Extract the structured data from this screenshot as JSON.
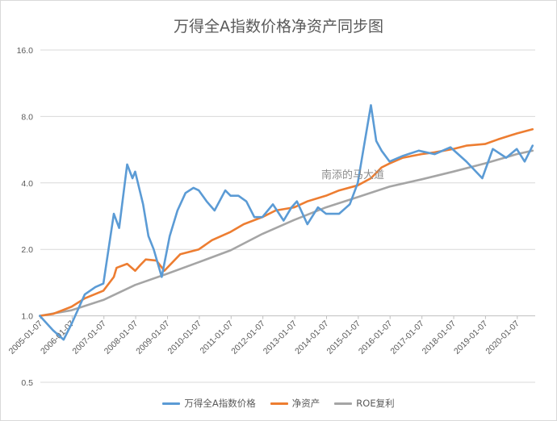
{
  "chart_data": {
    "type": "line",
    "title": "万得全A指数价格净资产同步图",
    "y_scale": "log",
    "ylim": [
      0.5,
      16.0
    ],
    "y_ticks": [
      "16.0",
      "8.0",
      "4.0",
      "2.0",
      "1.0",
      "0.5"
    ],
    "y_tick_values": [
      16,
      8,
      4,
      2,
      1,
      0.5
    ],
    "x_ticks": [
      "2005-01-07",
      "2006-01-07",
      "2007-01-07",
      "2008-01-07",
      "2009-01-07",
      "2010-01-07",
      "2011-01-07",
      "2012-01-07",
      "2013-01-07",
      "2014-01-07",
      "2015-01-07",
      "2016-01-07",
      "2017-01-07",
      "2018-01-07",
      "2019-01-07",
      "2020-01-07"
    ],
    "xlim": [
      "2005-01-07",
      "2020-07-31"
    ],
    "grid": true,
    "legend_position": "bottom",
    "watermark": "南添的马大道",
    "series": [
      {
        "name": "万得全A指数价格",
        "color": "#5b9bd5",
        "x": [
          "2005-01",
          "2005-06",
          "2005-10",
          "2006-01",
          "2006-06",
          "2006-10",
          "2007-01",
          "2007-05",
          "2007-07",
          "2007-10",
          "2007-12",
          "2008-01",
          "2008-04",
          "2008-06",
          "2008-08",
          "2008-11",
          "2009-02",
          "2009-05",
          "2009-08",
          "2009-11",
          "2010-01",
          "2010-04",
          "2010-07",
          "2010-11",
          "2011-01",
          "2011-04",
          "2011-07",
          "2011-10",
          "2012-01",
          "2012-05",
          "2012-09",
          "2012-12",
          "2013-02",
          "2013-06",
          "2013-10",
          "2014-01",
          "2014-06",
          "2014-10",
          "2015-01",
          "2015-03",
          "2015-06",
          "2015-08",
          "2015-10",
          "2016-01",
          "2016-06",
          "2016-12",
          "2017-06",
          "2017-12",
          "2018-06",
          "2018-12",
          "2019-04",
          "2019-09",
          "2020-01",
          "2020-04",
          "2020-07"
        ],
        "values": [
          1.0,
          0.86,
          0.78,
          0.92,
          1.25,
          1.35,
          1.4,
          2.9,
          2.5,
          4.85,
          4.2,
          4.5,
          3.2,
          2.3,
          2.0,
          1.5,
          2.3,
          3.0,
          3.6,
          3.8,
          3.7,
          3.3,
          3.0,
          3.7,
          3.5,
          3.5,
          3.3,
          2.8,
          2.8,
          3.2,
          2.7,
          3.1,
          3.3,
          2.6,
          3.1,
          2.9,
          2.9,
          3.2,
          4.0,
          5.5,
          9.0,
          6.2,
          5.6,
          5.0,
          5.3,
          5.6,
          5.4,
          5.8,
          5.0,
          4.2,
          5.7,
          5.2,
          5.7,
          5.0,
          5.9
        ]
      },
      {
        "name": "净资产",
        "color": "#ed7d31",
        "x": [
          "2005-01",
          "2005-06",
          "2006-01",
          "2006-06",
          "2007-01",
          "2007-05",
          "2007-06",
          "2007-10",
          "2008-01",
          "2008-03",
          "2008-05",
          "2008-09",
          "2008-12",
          "2009-06",
          "2010-01",
          "2010-06",
          "2011-01",
          "2011-06",
          "2012-01",
          "2012-06",
          "2013-01",
          "2013-06",
          "2014-01",
          "2014-06",
          "2015-01",
          "2015-06",
          "2015-10",
          "2016-01",
          "2016-06",
          "2017-01",
          "2017-06",
          "2018-01",
          "2018-06",
          "2019-01",
          "2019-06",
          "2020-01",
          "2020-07"
        ],
        "values": [
          1.0,
          1.02,
          1.1,
          1.2,
          1.3,
          1.5,
          1.65,
          1.72,
          1.6,
          1.7,
          1.8,
          1.78,
          1.6,
          1.9,
          2.0,
          2.2,
          2.4,
          2.6,
          2.8,
          3.0,
          3.1,
          3.3,
          3.5,
          3.7,
          3.9,
          4.2,
          4.7,
          4.9,
          5.2,
          5.4,
          5.5,
          5.7,
          5.9,
          6.0,
          6.3,
          6.7,
          7.0
        ]
      },
      {
        "name": "ROE复利",
        "color": "#a5a5a5",
        "x": [
          "2005-01",
          "2006-01",
          "2007-01",
          "2008-01",
          "2009-01",
          "2010-01",
          "2011-01",
          "2012-01",
          "2013-01",
          "2014-01",
          "2015-01",
          "2016-01",
          "2017-01",
          "2018-01",
          "2019-01",
          "2020-01",
          "2020-07"
        ],
        "values": [
          1.0,
          1.06,
          1.18,
          1.38,
          1.55,
          1.75,
          1.98,
          2.35,
          2.72,
          3.1,
          3.45,
          3.85,
          4.15,
          4.5,
          4.9,
          5.4,
          5.6
        ]
      }
    ]
  }
}
